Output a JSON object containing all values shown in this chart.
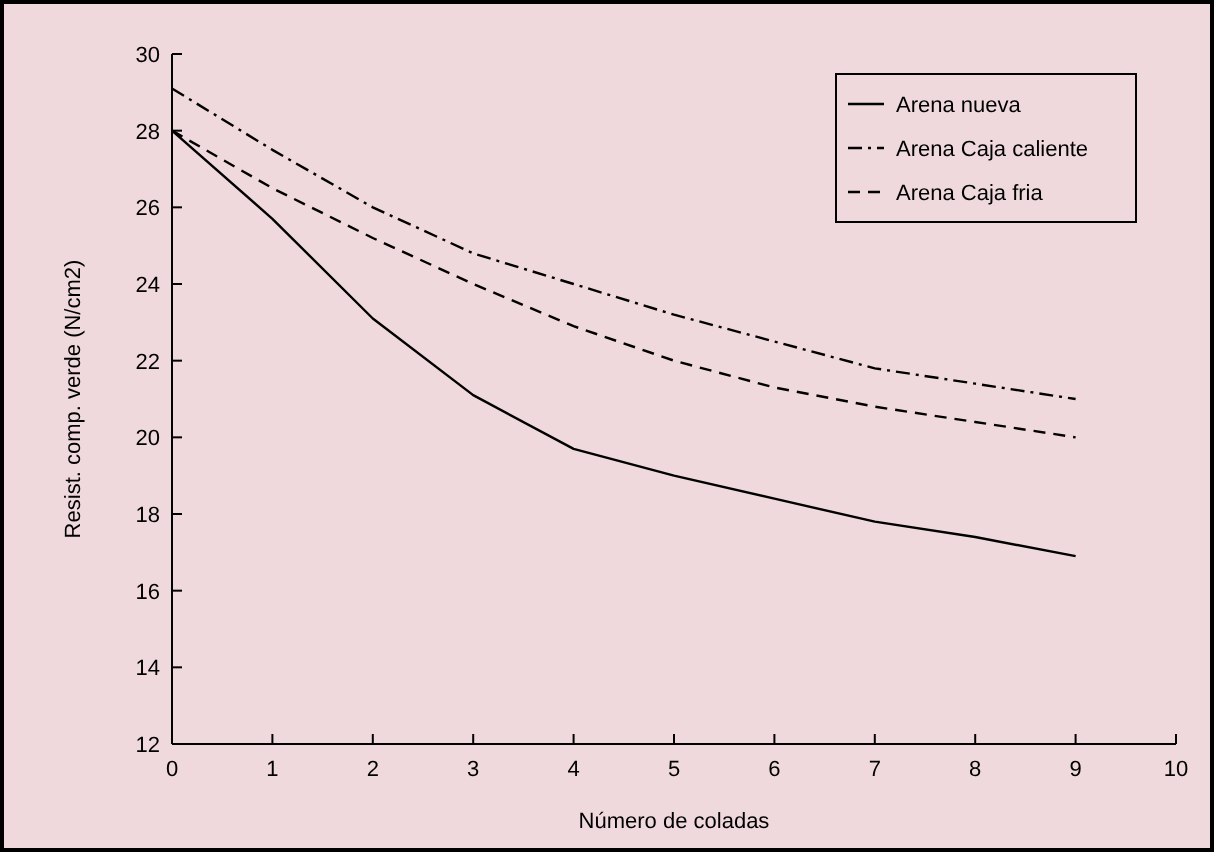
{
  "chart_data": {
    "type": "line",
    "xlabel": "Número de coladas",
    "ylabel": "Resist. comp. verde (N/cm2)",
    "x": [
      0,
      1,
      2,
      3,
      4,
      5,
      6,
      7,
      8,
      9
    ],
    "xlim": [
      0,
      10
    ],
    "xticks": [
      0,
      1,
      2,
      3,
      4,
      5,
      6,
      7,
      8,
      9,
      10
    ],
    "ylim": [
      12,
      30
    ],
    "yticks": [
      12,
      14,
      16,
      18,
      20,
      22,
      24,
      26,
      28,
      30
    ],
    "grid": false,
    "legend": "top right",
    "marker": "none",
    "series": [
      {
        "name": "Arena nueva",
        "color": "#000000",
        "line_style": "solid",
        "values": [
          28,
          25.7,
          23.1,
          21.1,
          19.7,
          19,
          18.4,
          17.8,
          17.4,
          16.9
        ]
      },
      {
        "name": "Arena Caja caliente",
        "color": "#000000",
        "line_style": "dashdot",
        "values": [
          29.1,
          27.5,
          26,
          24.8,
          24,
          23.2,
          22.5,
          21.8,
          21.4,
          21
        ]
      },
      {
        "name": "Arena Caja fria",
        "color": "#000000",
        "line_style": "dashed",
        "values": [
          28,
          26.5,
          25.2,
          24,
          22.9,
          22,
          21.3,
          20.8,
          20.4,
          20
        ]
      }
    ]
  }
}
